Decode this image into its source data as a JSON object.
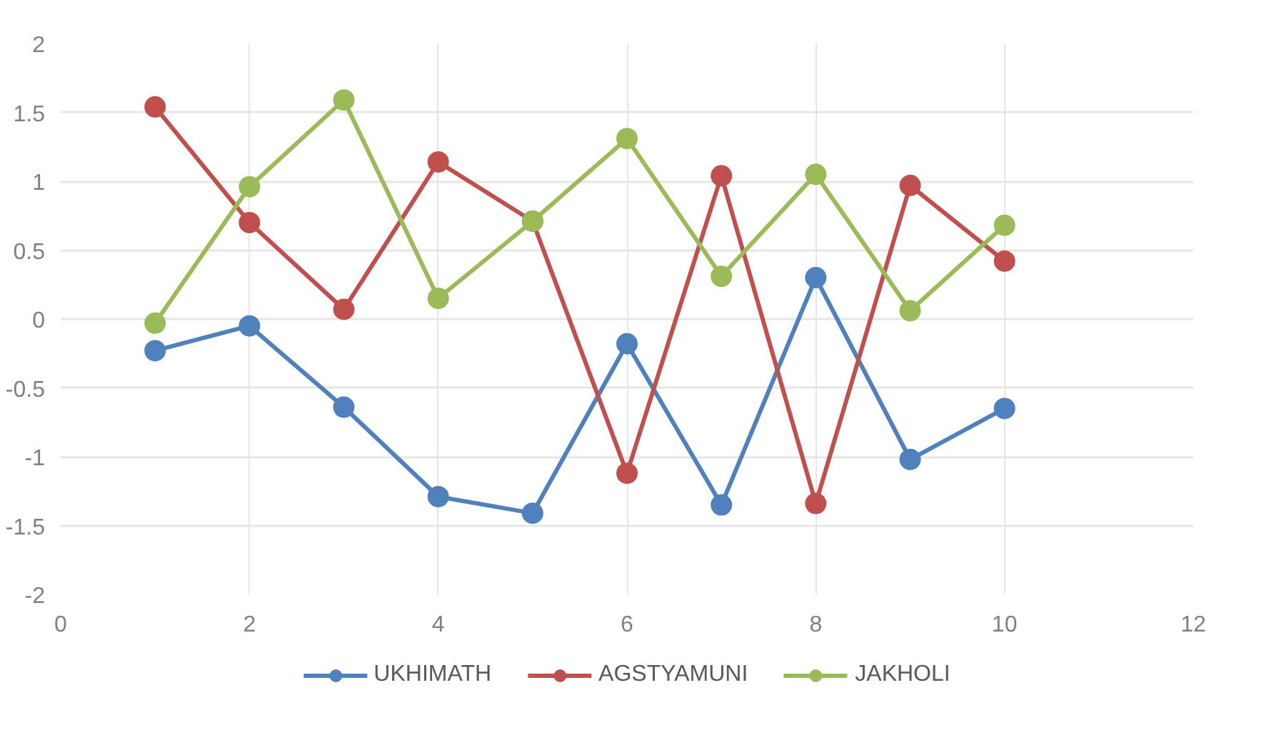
{
  "chart_data": {
    "type": "line",
    "x": [
      1,
      2,
      3,
      4,
      5,
      6,
      7,
      8,
      9,
      10
    ],
    "series": [
      {
        "name": "UKHIMATH",
        "color": "#4f81bd",
        "values": [
          -0.23,
          -0.05,
          -0.64,
          -1.29,
          -1.41,
          -0.18,
          -1.35,
          0.3,
          -1.02,
          -0.65
        ]
      },
      {
        "name": "AGSTYAMUNI",
        "color": "#c0504d",
        "values": [
          1.54,
          0.7,
          0.07,
          1.14,
          0.71,
          -1.12,
          1.04,
          -1.34,
          0.97,
          0.42
        ]
      },
      {
        "name": "JAKHOLI",
        "color": "#9bbb59",
        "values": [
          -0.03,
          0.96,
          1.59,
          0.15,
          0.71,
          1.31,
          0.31,
          1.05,
          0.06,
          0.68
        ]
      }
    ],
    "xlim": [
      0,
      12
    ],
    "xticks": [
      0,
      2,
      4,
      6,
      8,
      10,
      12
    ],
    "ylim": [
      -2,
      2
    ],
    "yticks": [
      -2,
      -1.5,
      -1,
      -0.5,
      0,
      0.5,
      1,
      1.5,
      2
    ],
    "grid": true,
    "legend": "bottom",
    "marker": "circle",
    "line_style": "solid"
  }
}
